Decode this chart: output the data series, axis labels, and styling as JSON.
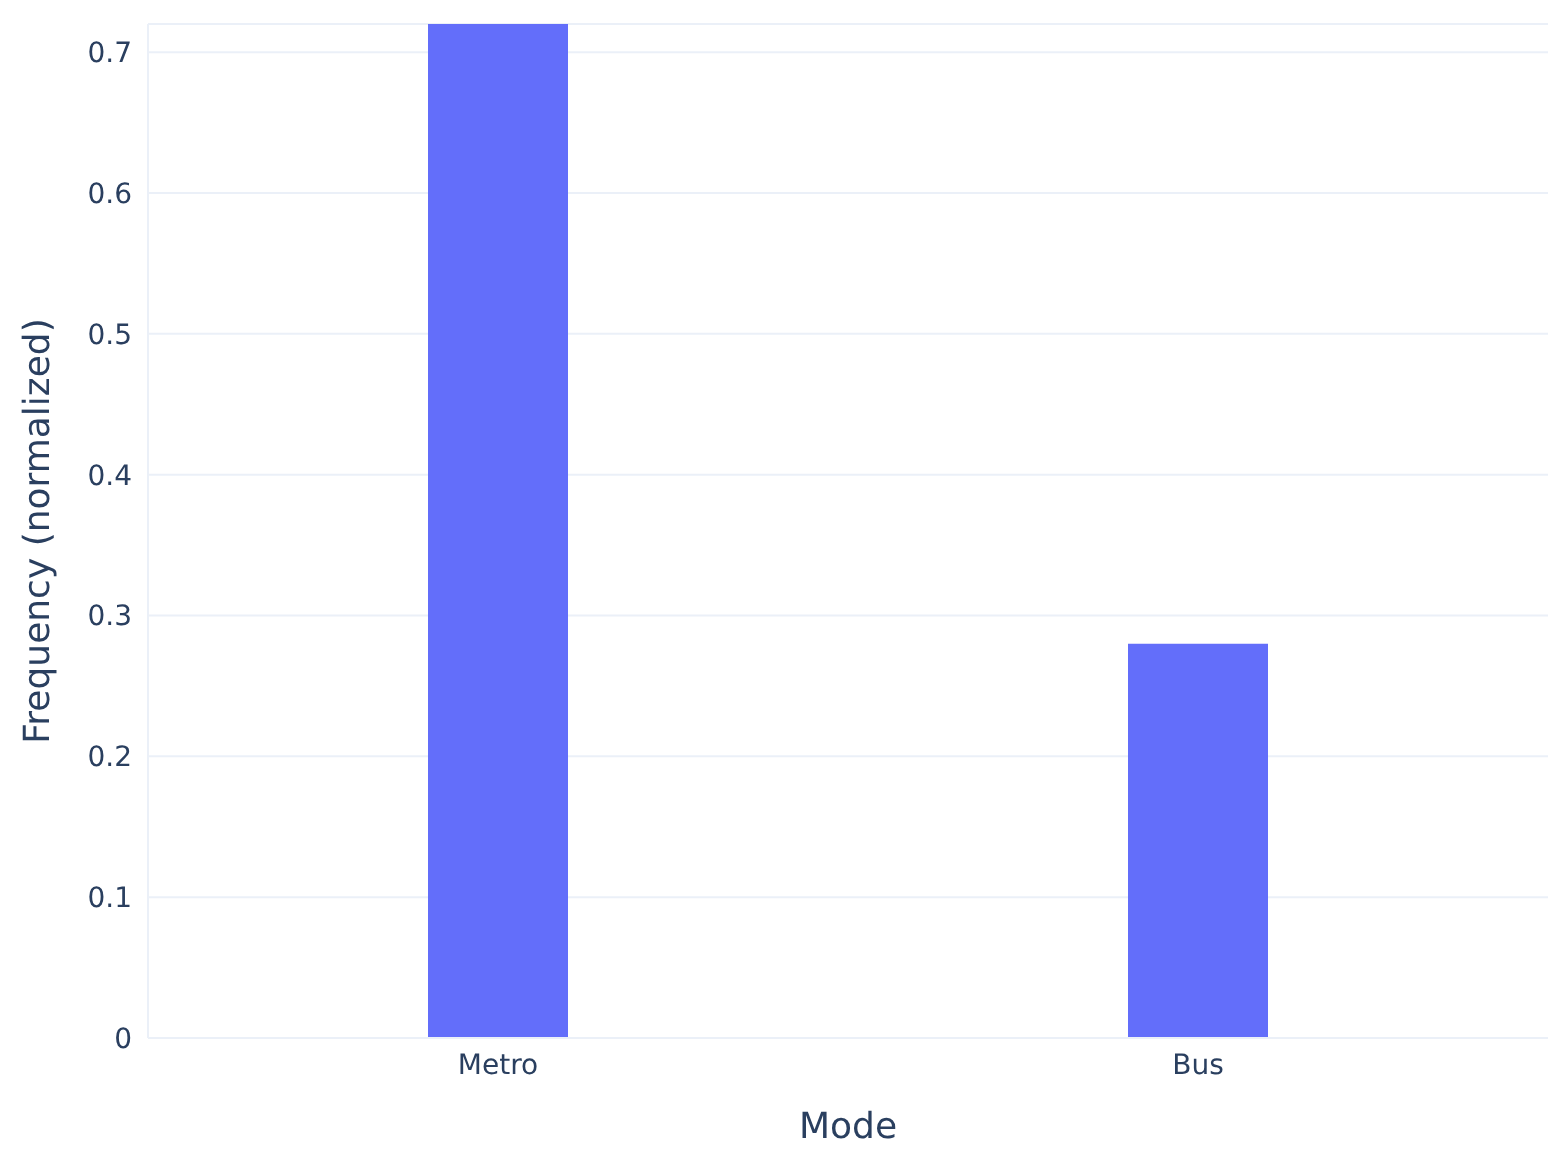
{
  "chart_data": {
    "type": "bar",
    "xlabel": "Mode",
    "ylabel": "Frequency (normalized)",
    "categories": [
      "Metro",
      "Bus"
    ],
    "values": [
      0.72,
      0.28
    ],
    "color": "#636efa",
    "ylim": [
      0,
      0.72
    ],
    "yticks": [
      0,
      0.1,
      0.2,
      0.3,
      0.4,
      0.5,
      0.6,
      0.7
    ],
    "grid": "y",
    "legend": false
  }
}
